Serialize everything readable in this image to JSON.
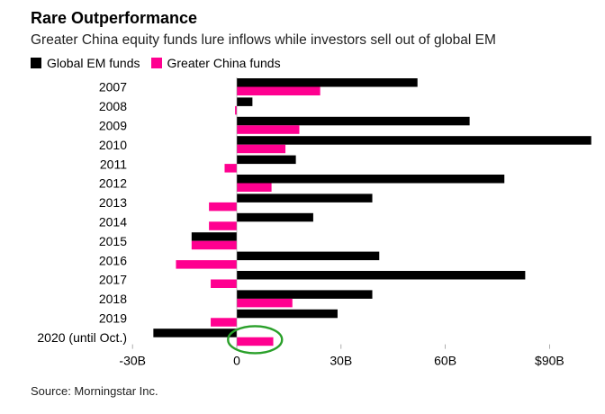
{
  "chart_data": {
    "type": "bar",
    "orientation": "horizontal",
    "title": "Rare Outperformance",
    "subtitle": "Greater China equity funds lure inflows while investors sell out of global EM",
    "categories": [
      "2007",
      "2008",
      "2009",
      "2010",
      "2011",
      "2012",
      "2013",
      "2014",
      "2015",
      "2016",
      "2017",
      "2018",
      "2019",
      "2020 (until Oct.)"
    ],
    "series": [
      {
        "name": "Global EM funds",
        "color": "#000000",
        "values": [
          52,
          4.5,
          67,
          102,
          17,
          77,
          39,
          22,
          -13,
          41,
          83,
          39,
          29,
          -24
        ]
      },
      {
        "name": "Greater China funds",
        "color": "#ff0090",
        "values": [
          24,
          -0.5,
          18,
          14,
          -3.5,
          10,
          -8,
          -8,
          -13,
          -17.5,
          -7.5,
          16,
          -7.5,
          10.5
        ]
      }
    ],
    "xlim": [
      -30,
      102
    ],
    "x_ticks": [
      {
        "value": -30,
        "label": "-30B"
      },
      {
        "value": 0,
        "label": "0"
      },
      {
        "value": 30,
        "label": "30B"
      },
      {
        "value": 60,
        "label": "60B"
      },
      {
        "value": 90,
        "label": "$90B"
      }
    ],
    "legend_position": "top-left",
    "grid": false,
    "annotation": {
      "type": "circle",
      "target": "2020 (until Oct.)",
      "series": "Greater China funds",
      "color": "#2aa02a"
    },
    "source": "Source: Morningstar Inc."
  }
}
